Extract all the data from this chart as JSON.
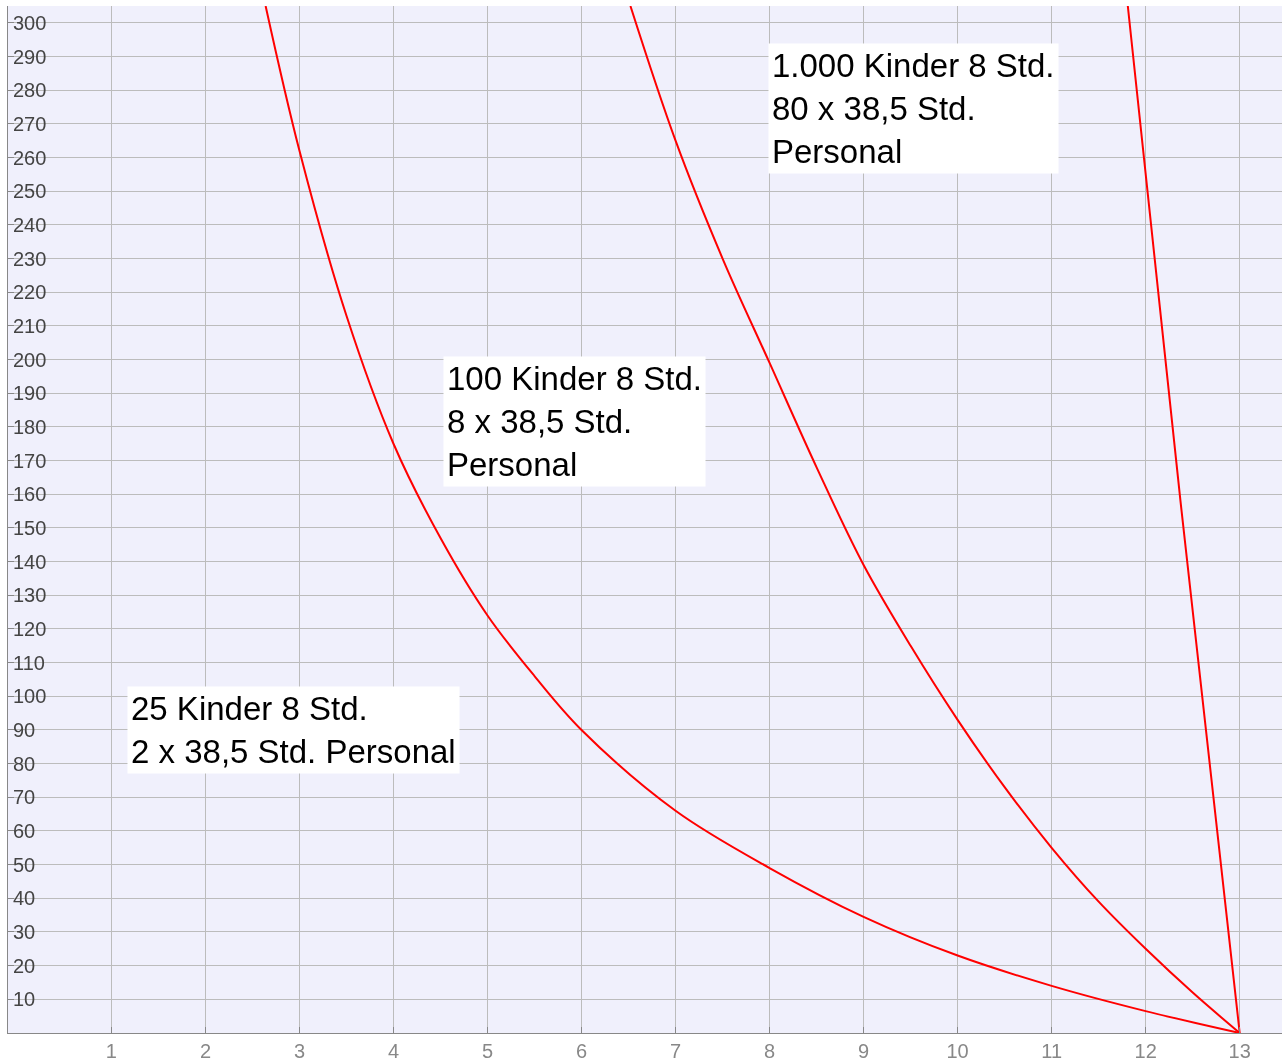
{
  "chart_data": {
    "type": "line",
    "xlim": [
      -0.1,
      13.45
    ],
    "ylim": [
      0,
      305
    ],
    "xticks": [
      1,
      2,
      3,
      4,
      5,
      6,
      7,
      8,
      9,
      10,
      11,
      12,
      13
    ],
    "yticks": [
      10,
      20,
      30,
      40,
      50,
      60,
      70,
      80,
      90,
      100,
      110,
      120,
      130,
      140,
      150,
      160,
      170,
      180,
      190,
      200,
      210,
      220,
      230,
      240,
      250,
      260,
      270,
      280,
      290,
      300
    ],
    "grid": true,
    "marker": "none",
    "line_style": "solid",
    "series": [
      {
        "color": "#ff0000",
        "x": [
          2.64,
          3,
          3.5,
          4,
          4.5,
          5,
          5.5,
          6,
          7,
          8,
          9,
          10,
          11,
          12,
          13
        ],
        "values": [
          305,
          262,
          213,
          175,
          147,
          124,
          106,
          90,
          66,
          49,
          34.5,
          23,
          14,
          6.5,
          0
        ]
      },
      {
        "color": "#ff0000",
        "x": [
          6.52,
          7,
          7.5,
          8,
          8.5,
          9,
          9.5,
          10,
          10.5,
          11,
          11.5,
          12,
          12.5,
          13
        ],
        "values": [
          305,
          265,
          230,
          199,
          168,
          139,
          115,
          93,
          73,
          55,
          39,
          25,
          12,
          0
        ]
      },
      {
        "color": "#ff0000",
        "x": [
          11.81,
          12.37,
          13
        ],
        "values": [
          305,
          158,
          0
        ]
      }
    ],
    "annotations": [
      "25 Kinder 8 Std.\n2 x 38,5 Std. Personal",
      "100 Kinder 8 Std.\n8 x 38,5 Std.\nPersonal",
      "1.000 Kinder 8 Std.\n80 x 38,5 Std.\nPersonal"
    ]
  }
}
